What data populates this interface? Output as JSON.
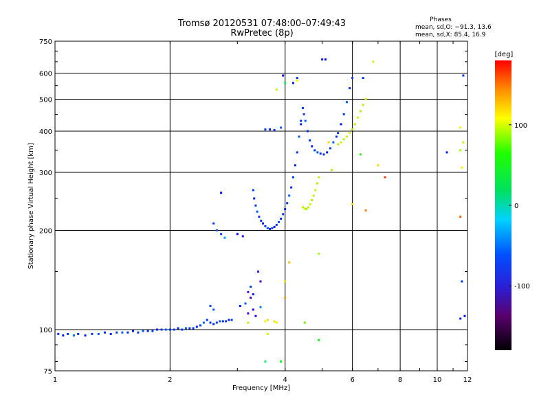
{
  "chart_data": {
    "type": "scatter",
    "title": "Tromsø 20120531 07:48:00–07:49:43",
    "subtitle": "RwPretec (8p)",
    "xlabel": "Frequency [MHz]",
    "ylabel": "Stationary phase Virtual Height [km]",
    "x_scale": "log",
    "y_scale": "log",
    "xlim": [
      1,
      12
    ],
    "ylim": [
      75,
      750
    ],
    "x_ticks": [
      1,
      2,
      4,
      6,
      8,
      10,
      12
    ],
    "y_ticks": [
      75,
      100,
      200,
      300,
      400,
      500,
      600,
      750
    ],
    "grid": true,
    "legend": {
      "title": "Phases",
      "lines": [
        "mean, sd,O: −91.3, 13.6",
        "mean, sd,X:  85.4, 16.9"
      ],
      "placement": "top-right"
    },
    "colorbar": {
      "label": "[deg]",
      "min": -180,
      "max": 180,
      "ticks": [
        100,
        0,
        -100
      ],
      "palette": "rainbow"
    },
    "series": [
      {
        "trace": "low-height base trace",
        "points": [
          [
            1.02,
            97,
            -110
          ],
          [
            1.05,
            96,
            -120
          ],
          [
            1.08,
            97,
            -110
          ],
          [
            1.12,
            96,
            -95
          ],
          [
            1.15,
            97,
            -115
          ],
          [
            1.2,
            96,
            -120
          ],
          [
            1.25,
            97,
            -110
          ],
          [
            1.3,
            97,
            -100
          ],
          [
            1.35,
            98,
            -115
          ],
          [
            1.4,
            97,
            -120
          ],
          [
            1.45,
            98,
            -110
          ],
          [
            1.5,
            98,
            -100
          ],
          [
            1.55,
            98,
            -115
          ],
          [
            1.6,
            99,
            -120
          ],
          [
            1.65,
            98,
            -110
          ],
          [
            1.7,
            99,
            -100
          ],
          [
            1.75,
            99,
            -115
          ],
          [
            1.8,
            99,
            -110
          ],
          [
            1.85,
            100,
            -120
          ],
          [
            1.9,
            100,
            -110
          ],
          [
            1.95,
            100,
            -100
          ],
          [
            2.0,
            100,
            -115
          ],
          [
            2.05,
            100,
            -110
          ],
          [
            2.1,
            101,
            -120
          ],
          [
            2.15,
            100,
            -110
          ],
          [
            2.2,
            101,
            -100
          ],
          [
            2.25,
            101,
            -115
          ],
          [
            2.3,
            101,
            -110
          ],
          [
            2.35,
            102,
            -120
          ],
          [
            2.4,
            103,
            -110
          ],
          [
            2.45,
            105,
            -100
          ],
          [
            2.5,
            107,
            -115
          ],
          [
            2.55,
            105,
            -110
          ],
          [
            2.6,
            104,
            -120
          ],
          [
            2.65,
            105,
            -110
          ],
          [
            2.7,
            106,
            -100
          ],
          [
            2.75,
            106,
            -115
          ],
          [
            2.8,
            106,
            -110
          ],
          [
            2.85,
            107,
            -120
          ],
          [
            2.9,
            107,
            -110
          ]
        ]
      },
      {
        "trace": "isolated echoes 2.5-3.3 MHz",
        "points": [
          [
            2.55,
            118,
            -105
          ],
          [
            2.6,
            115,
            -100
          ],
          [
            2.72,
            260,
            -130
          ],
          [
            2.6,
            210,
            -110
          ],
          [
            2.65,
            200,
            -100
          ],
          [
            2.72,
            195,
            -110
          ],
          [
            2.78,
            190,
            -80
          ],
          [
            3.0,
            195,
            -130
          ],
          [
            3.1,
            192,
            -140
          ],
          [
            3.05,
            118,
            -120
          ],
          [
            3.15,
            120,
            -100
          ],
          [
            3.2,
            112,
            -150
          ],
          [
            3.25,
            125,
            -160
          ],
          [
            3.2,
            130,
            -150
          ],
          [
            3.3,
            128,
            -120
          ],
          [
            3.25,
            135,
            -110
          ],
          [
            3.35,
            110,
            -130
          ],
          [
            3.3,
            115,
            -140
          ],
          [
            3.45,
            117,
            -90
          ],
          [
            3.4,
            150,
            -150
          ],
          [
            3.45,
            140,
            -160
          ],
          [
            3.2,
            105,
            80
          ],
          [
            3.55,
            106,
            100
          ],
          [
            3.6,
            107,
            110
          ],
          [
            3.75,
            106,
            110
          ],
          [
            3.8,
            105,
            100
          ],
          [
            3.6,
            97,
            90
          ]
        ]
      },
      {
        "trace": "F-region O trace (cusp at 3.6 MHz, second cusp at 4.4 MHz)",
        "points": [
          [
            3.3,
            265,
            -110
          ],
          [
            3.32,
            250,
            -120
          ],
          [
            3.35,
            238,
            -110
          ],
          [
            3.38,
            228,
            -100
          ],
          [
            3.42,
            220,
            -115
          ],
          [
            3.46,
            214,
            -110
          ],
          [
            3.5,
            210,
            -120
          ],
          [
            3.55,
            206,
            -110
          ],
          [
            3.6,
            203,
            -100
          ],
          [
            3.65,
            202,
            -115
          ],
          [
            3.7,
            203,
            -110
          ],
          [
            3.75,
            205,
            -120
          ],
          [
            3.8,
            208,
            -110
          ],
          [
            3.85,
            212,
            -100
          ],
          [
            3.9,
            217,
            -115
          ],
          [
            3.95,
            224,
            -110
          ],
          [
            4.0,
            232,
            -120
          ],
          [
            4.05,
            242,
            -110
          ],
          [
            4.1,
            255,
            -100
          ],
          [
            4.15,
            270,
            -115
          ],
          [
            4.2,
            290,
            -110
          ],
          [
            4.25,
            315,
            -120
          ],
          [
            4.3,
            345,
            -110
          ],
          [
            4.35,
            385,
            -100
          ],
          [
            4.4,
            430,
            -115
          ],
          [
            4.45,
            470,
            -110
          ],
          [
            4.4,
            420,
            -120
          ],
          [
            4.48,
            450,
            -110
          ],
          [
            4.52,
            430,
            -100
          ],
          [
            4.58,
            400,
            -115
          ],
          [
            4.64,
            375,
            -110
          ],
          [
            4.7,
            360,
            -120
          ],
          [
            4.78,
            350,
            -110
          ],
          [
            4.86,
            345,
            -100
          ],
          [
            4.95,
            342,
            -115
          ],
          [
            5.05,
            340,
            -110
          ],
          [
            5.15,
            345,
            -120
          ],
          [
            5.25,
            355,
            -110
          ],
          [
            5.35,
            370,
            -100
          ],
          [
            5.45,
            385,
            -115
          ],
          [
            5.5,
            395,
            -110
          ],
          [
            5.6,
            420,
            -120
          ],
          [
            5.7,
            450,
            -110
          ],
          [
            5.8,
            490,
            -100
          ],
          [
            5.9,
            540,
            -115
          ],
          [
            6.0,
            580,
            -110
          ]
        ]
      },
      {
        "trace": "F-region X trace",
        "points": [
          [
            4.45,
            235,
            85
          ],
          [
            4.5,
            233,
            90
          ],
          [
            4.55,
            232,
            80
          ],
          [
            4.6,
            235,
            85
          ],
          [
            4.65,
            240,
            90
          ],
          [
            4.7,
            247,
            80
          ],
          [
            4.75,
            255,
            85
          ],
          [
            4.8,
            265,
            90
          ],
          [
            4.85,
            278,
            80
          ],
          [
            4.9,
            290,
            85
          ],
          [
            5.5,
            365,
            85
          ],
          [
            5.6,
            370,
            90
          ],
          [
            5.7,
            378,
            80
          ],
          [
            5.8,
            385,
            85
          ],
          [
            5.9,
            395,
            90
          ],
          [
            6.0,
            405,
            80
          ],
          [
            6.1,
            420,
            85
          ],
          [
            6.2,
            440,
            90
          ],
          [
            6.3,
            460,
            80
          ],
          [
            6.4,
            480,
            85
          ],
          [
            6.5,
            500,
            90
          ]
        ]
      },
      {
        "trace": "scattered echoes",
        "points": [
          [
            3.65,
            405,
            -120
          ],
          [
            3.55,
            405,
            -110
          ],
          [
            3.75,
            403,
            -115
          ],
          [
            3.9,
            410,
            -100
          ],
          [
            3.8,
            535,
            90
          ],
          [
            4.2,
            560,
            -120
          ],
          [
            4.3,
            580,
            -110
          ],
          [
            5.0,
            660,
            -120
          ],
          [
            5.1,
            660,
            -125
          ],
          [
            6.4,
            580,
            -110
          ],
          [
            6.8,
            650,
            90
          ],
          [
            5.2,
            370,
            110
          ],
          [
            5.3,
            305,
            80
          ],
          [
            6.3,
            340,
            40
          ],
          [
            7.0,
            315,
            110
          ],
          [
            7.3,
            290,
            160
          ],
          [
            6.0,
            240,
            110
          ],
          [
            6.5,
            230,
            140
          ],
          [
            4.0,
            560,
            0
          ],
          [
            4.3,
            570,
            100
          ],
          [
            3.95,
            590,
            -130
          ],
          [
            4.9,
            170,
            80
          ],
          [
            4.1,
            160,
            120
          ],
          [
            4.0,
            140,
            110
          ],
          [
            4.0,
            125,
            130
          ],
          [
            4.5,
            105,
            60
          ],
          [
            4.9,
            93,
            20
          ],
          [
            3.9,
            80,
            20
          ],
          [
            3.55,
            80,
            -10
          ],
          [
            10.6,
            345,
            -120
          ],
          [
            11.7,
            590,
            -110
          ],
          [
            11.5,
            350,
            80
          ],
          [
            11.7,
            370,
            90
          ],
          [
            11.5,
            410,
            100
          ],
          [
            11.6,
            310,
            100
          ],
          [
            11.5,
            220,
            150
          ],
          [
            11.6,
            140,
            -110
          ],
          [
            11.5,
            108,
            -120
          ],
          [
            11.8,
            110,
            -125
          ]
        ]
      }
    ]
  }
}
